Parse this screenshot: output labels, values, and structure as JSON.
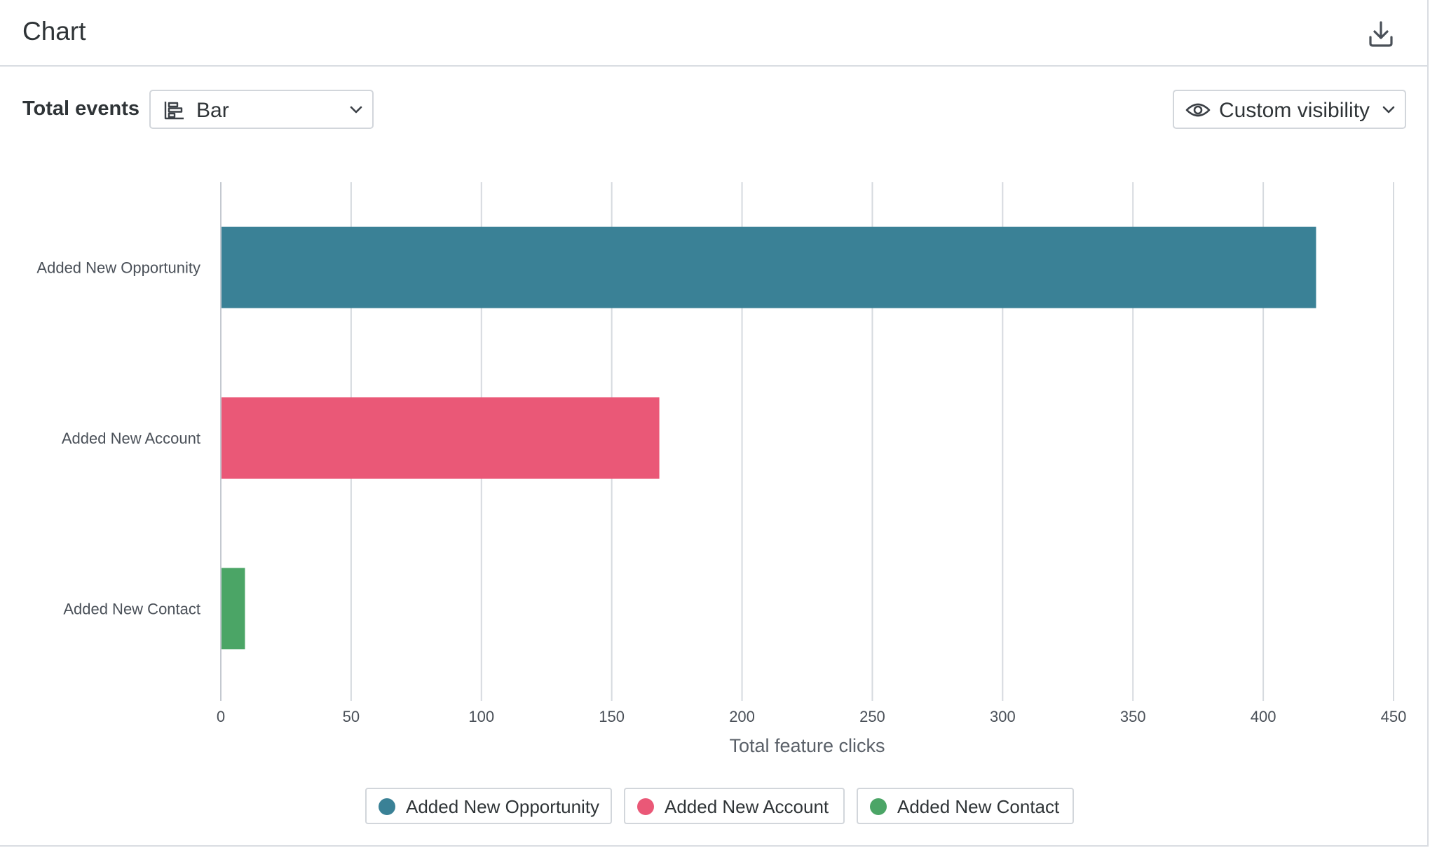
{
  "header": {
    "title": "Chart",
    "download_icon": "download-icon"
  },
  "toolbar": {
    "metric_label": "Total events",
    "chart_type": {
      "icon": "bar-chart-icon",
      "value": "Bar"
    },
    "visibility": {
      "icon": "eye-icon",
      "value": "Custom visibility"
    }
  },
  "chart_data": {
    "type": "bar",
    "orientation": "horizontal",
    "categories": [
      "Added New Opportunity",
      "Added New Account",
      "Added New Contact"
    ],
    "values": [
      420,
      168,
      9
    ],
    "colors": [
      "#3a8196",
      "#ea5877",
      "#4ba566"
    ],
    "xlabel": "Total feature clicks",
    "ylabel": "",
    "xlim": [
      0,
      450
    ],
    "xticks": [
      0,
      50,
      100,
      150,
      200,
      250,
      300,
      350,
      400,
      450
    ],
    "grid": "vertical",
    "legend_position": "bottom-center"
  },
  "legend": {
    "items": [
      {
        "label": "Added New Opportunity",
        "color": "#3a8196"
      },
      {
        "label": "Added New Account",
        "color": "#ea5877"
      },
      {
        "label": "Added New Contact",
        "color": "#4ba566"
      }
    ]
  }
}
